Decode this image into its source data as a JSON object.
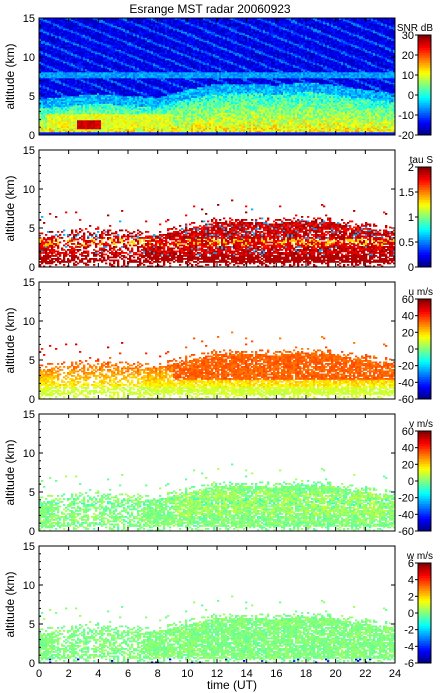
{
  "title": "Esrange MST radar 20060923",
  "xlabel": "time (UT)",
  "xlim": [
    0,
    24
  ],
  "xticks": [
    0,
    2,
    4,
    6,
    8,
    10,
    12,
    14,
    16,
    18,
    20,
    22,
    24
  ],
  "chart_data": [
    {
      "type": "heatmap",
      "ylabel": "altitude (km)",
      "ylim": [
        0,
        15
      ],
      "yticks": [
        0,
        5,
        10,
        15
      ],
      "colorbar": {
        "label": "SNR dB",
        "range": [
          -20,
          30
        ],
        "ticks": [
          -20,
          -10,
          0,
          10,
          20,
          30
        ]
      },
      "description_values": "Dense SNR field 0-15 km all day; background about -10 to -15 dB; 5-20 dB layer 1-4 km; peak about 30 dB near 1.5 km at 2.5-4 UT; layer top near 5 km after 8 UT",
      "model": "snr"
    },
    {
      "type": "heatmap",
      "ylabel": "altitude (km)",
      "ylim": [
        0,
        15
      ],
      "yticks": [
        0,
        5,
        10,
        15
      ],
      "colorbar": {
        "label": "tau S",
        "range": [
          0,
          2
        ],
        "ticks": [
          0,
          0.5,
          1,
          1.5,
          2
        ]
      },
      "model": "tau"
    },
    {
      "type": "heatmap",
      "ylabel": "altitude (km)",
      "ylim": [
        0,
        15
      ],
      "yticks": [
        0,
        5,
        10,
        15
      ],
      "colorbar": {
        "label": "u m/s",
        "range": [
          -60,
          60
        ],
        "ticks": [
          -60,
          -40,
          -20,
          0,
          20,
          40,
          60
        ]
      },
      "model": "u"
    },
    {
      "type": "heatmap",
      "ylabel": "altitude (km)",
      "ylim": [
        0,
        15
      ],
      "yticks": [
        0,
        5,
        10,
        15
      ],
      "colorbar": {
        "label": "v m/s",
        "range": [
          -60,
          60
        ],
        "ticks": [
          -60,
          -40,
          -20,
          0,
          20,
          40,
          60
        ]
      },
      "model": "v"
    },
    {
      "type": "heatmap",
      "ylabel": "altitude (km)",
      "ylim": [
        0,
        15
      ],
      "yticks": [
        0,
        5,
        10,
        15
      ],
      "colorbar": {
        "label": "w m/s",
        "range": [
          -6,
          6
        ],
        "ticks": [
          -6,
          -4,
          -2,
          0,
          2,
          4,
          6
        ]
      },
      "model": "w"
    }
  ],
  "layer_top_km": {
    "t": [
      0,
      2,
      4,
      6,
      8,
      10,
      12,
      14,
      16,
      18,
      20,
      22,
      24
    ],
    "top": [
      3.8,
      4.2,
      4.5,
      4.2,
      4.0,
      5.0,
      5.8,
      5.8,
      5.6,
      6.0,
      5.6,
      5.0,
      4.6
    ]
  }
}
